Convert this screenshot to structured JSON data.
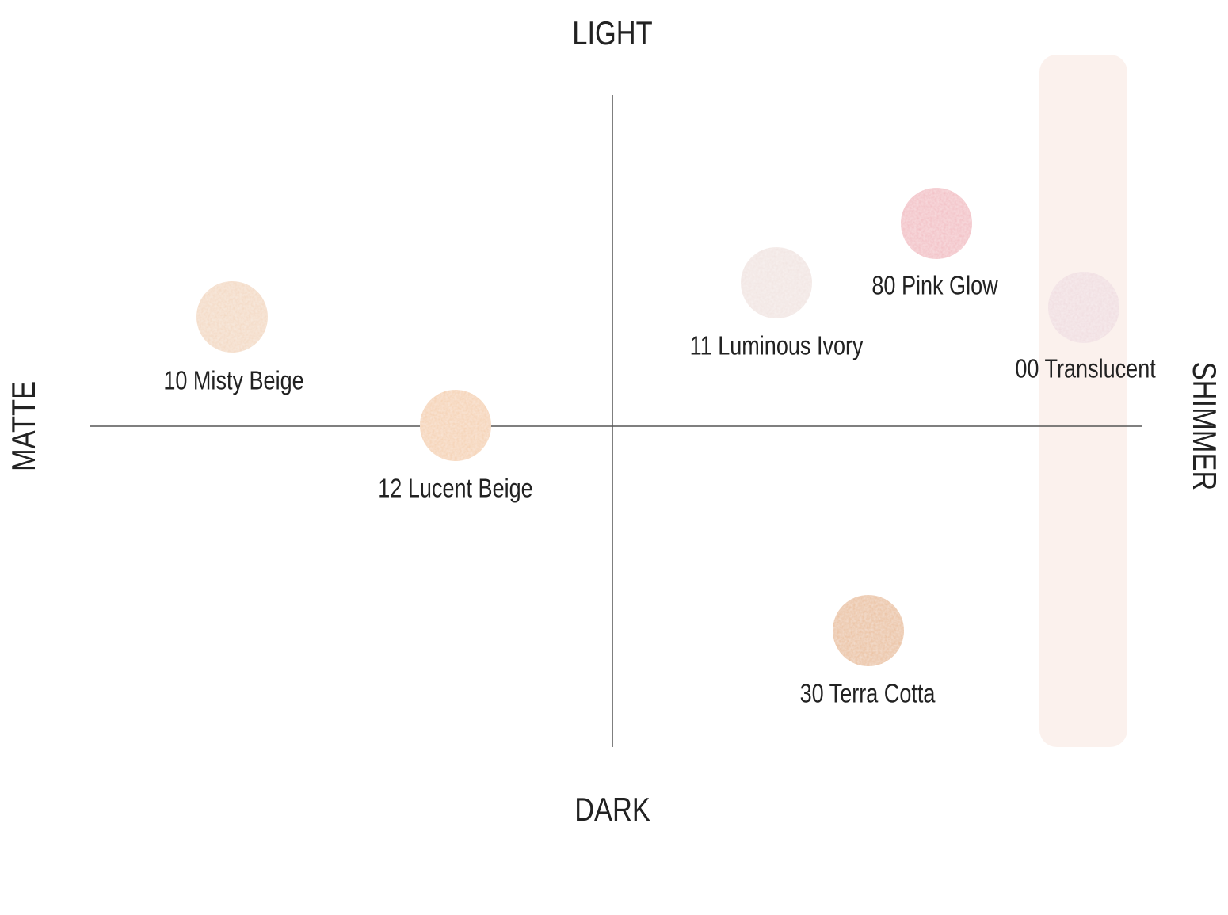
{
  "axes": {
    "top": "LIGHT",
    "bottom": "DARK",
    "left": "MATTE",
    "right": "SHIMMER"
  },
  "products": [
    {
      "label": "10 Misty Beige"
    },
    {
      "label": "12 Lucent Beige"
    },
    {
      "label": "11 Luminous Ivory"
    },
    {
      "label": "80 Pink Glow"
    },
    {
      "label": "00 Translucent"
    },
    {
      "label": "30 Terra Cotta"
    }
  ]
}
